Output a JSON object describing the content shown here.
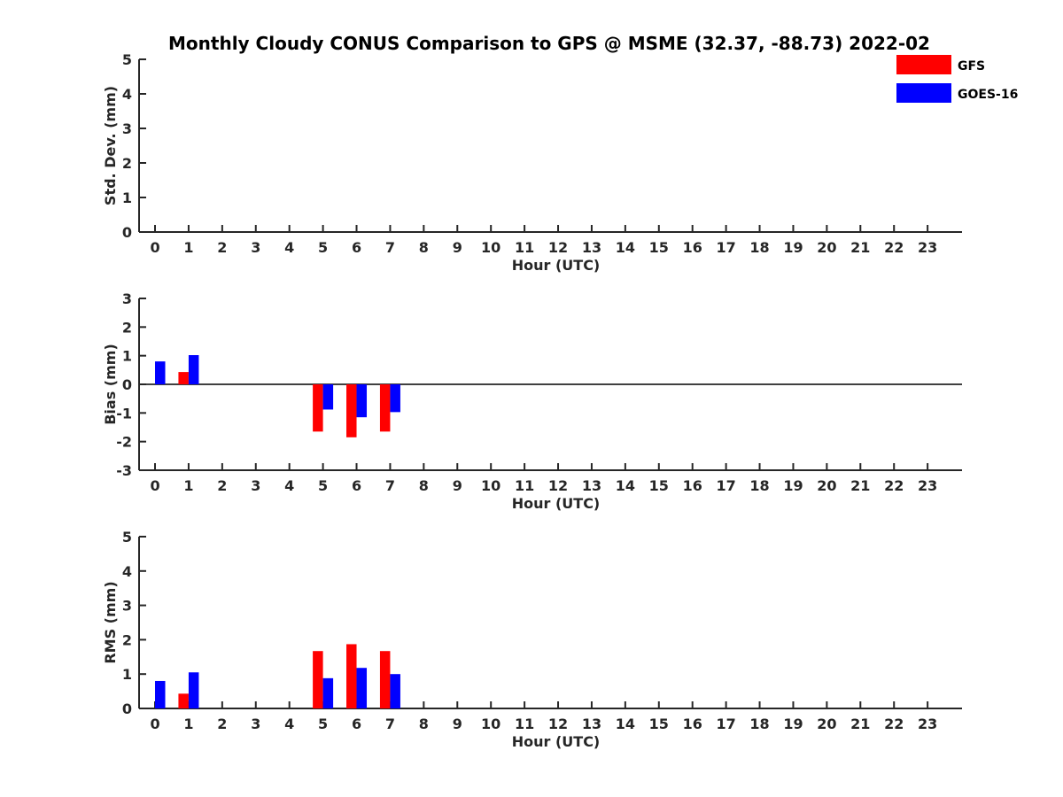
{
  "chart_data": {
    "type": "bar",
    "title": "Monthly Cloudy CONUS Comparison to GPS @ MSME (32.37, -88.73) 2022-02",
    "legend": {
      "placement": "top-right",
      "entries": [
        {
          "name": "GFS",
          "color": "#ff0000"
        },
        {
          "name": "GOES-16",
          "color": "#0000ff"
        }
      ]
    },
    "x": [
      "0",
      "1",
      "2",
      "3",
      "4",
      "5",
      "6",
      "7",
      "8",
      "9",
      "10",
      "11",
      "12",
      "13",
      "14",
      "15",
      "16",
      "17",
      "18",
      "19",
      "20",
      "21",
      "22",
      "23"
    ],
    "panels": [
      {
        "id": "stddev",
        "ylabel": "Std. Dev. (mm)",
        "xlabel": "Hour (UTC)",
        "ylim": [
          0,
          5
        ],
        "yticks": [
          "0",
          "1",
          "2",
          "3",
          "4",
          "5"
        ],
        "zero_line": false,
        "series": [
          {
            "name": "GFS",
            "color": "#ff0000",
            "values": [
              null,
              null,
              null,
              null,
              null,
              null,
              null,
              null,
              null,
              null,
              null,
              null,
              null,
              null,
              null,
              null,
              null,
              null,
              null,
              null,
              null,
              null,
              null,
              null
            ]
          },
          {
            "name": "GOES-16",
            "color": "#0000ff",
            "values": [
              null,
              null,
              null,
              null,
              null,
              null,
              null,
              null,
              null,
              null,
              null,
              null,
              null,
              null,
              null,
              null,
              null,
              null,
              null,
              null,
              null,
              null,
              null,
              null
            ]
          }
        ]
      },
      {
        "id": "bias",
        "ylabel": "Bias (mm)",
        "xlabel": "Hour (UTC)",
        "ylim": [
          -3,
          3
        ],
        "yticks": [
          "-3",
          "-2",
          "-1",
          "0",
          "1",
          "2",
          "3"
        ],
        "zero_line": true,
        "series": [
          {
            "name": "GFS",
            "color": "#ff0000",
            "values": [
              null,
              0.43,
              null,
              null,
              null,
              -1.65,
              -1.85,
              -1.65,
              null,
              null,
              null,
              null,
              null,
              null,
              null,
              null,
              null,
              null,
              null,
              null,
              null,
              null,
              null,
              null
            ]
          },
          {
            "name": "GOES-16",
            "color": "#0000ff",
            "values": [
              0.8,
              1.02,
              null,
              null,
              null,
              -0.88,
              -1.15,
              -0.97,
              null,
              null,
              null,
              null,
              null,
              null,
              null,
              null,
              null,
              null,
              null,
              null,
              null,
              null,
              null,
              null
            ]
          }
        ]
      },
      {
        "id": "rms",
        "ylabel": "RMS (mm)",
        "xlabel": "Hour (UTC)",
        "ylim": [
          0,
          5
        ],
        "yticks": [
          "0",
          "1",
          "2",
          "3",
          "4",
          "5"
        ],
        "zero_line": false,
        "series": [
          {
            "name": "GFS",
            "color": "#ff0000",
            "values": [
              null,
              0.43,
              null,
              null,
              null,
              1.67,
              1.87,
              1.67,
              null,
              null,
              null,
              null,
              null,
              null,
              null,
              null,
              null,
              null,
              null,
              null,
              null,
              null,
              null,
              null
            ]
          },
          {
            "name": "GOES-16",
            "color": "#0000ff",
            "values": [
              0.8,
              1.05,
              null,
              null,
              null,
              0.88,
              1.18,
              1.0,
              null,
              null,
              null,
              null,
              null,
              null,
              null,
              null,
              null,
              null,
              null,
              null,
              null,
              null,
              null,
              null
            ]
          }
        ]
      }
    ]
  }
}
